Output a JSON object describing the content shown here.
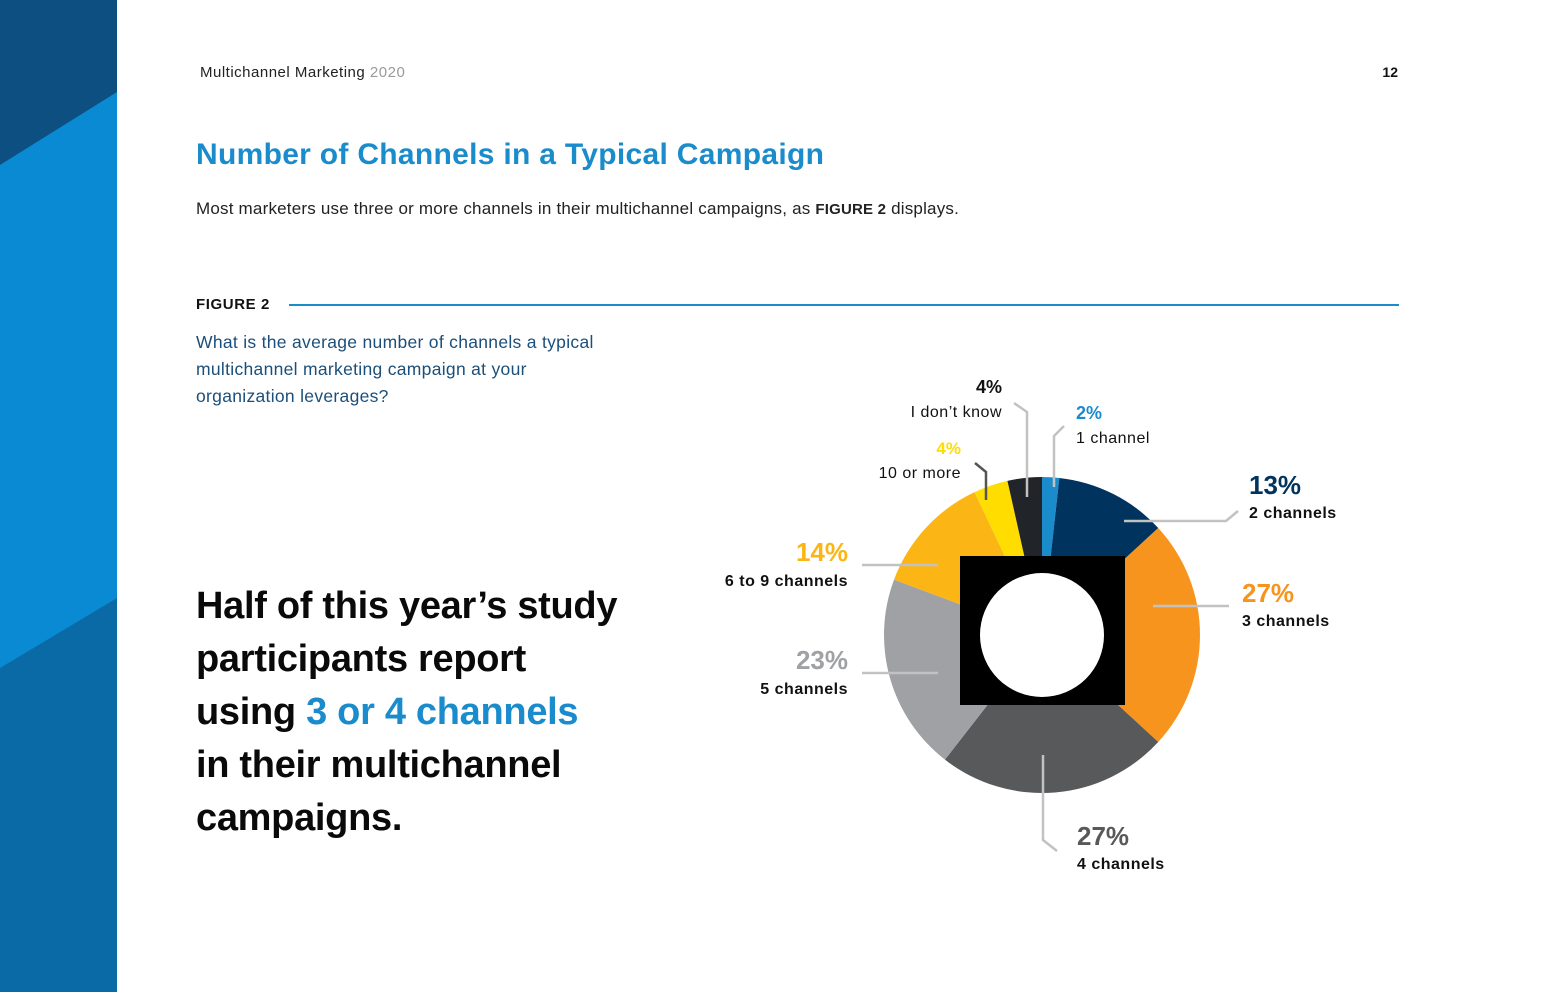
{
  "header": {
    "title": "Multichannel Marketing",
    "year": "2020",
    "page": "12"
  },
  "section_title": "Number of Channels in a Typical Campaign",
  "intro": {
    "before": "Most marketers use three or more channels in their multichannel campaigns, as ",
    "figure_ref": "FIGURE 2",
    "after": " displays."
  },
  "figure": {
    "label": "FIGURE 2",
    "question": "What is the average number of channels a typical multichannel marketing campaign at your organization leverages?"
  },
  "callout": {
    "line1": "Half of this year’s study participants report",
    "using": "using ",
    "highlight": "3 or 4 channels",
    "rest": "in their multichannel campaigns."
  },
  "colors": {
    "accent": "#1a8ccc",
    "side_dark": "#0d4f80",
    "side_mid": "#0a8ad2",
    "side_low": "#0a6aa6"
  },
  "chart_data": {
    "type": "pie",
    "style": "donut",
    "categories": [
      "1 channel",
      "2 channels",
      "3 channels",
      "4 channels",
      "5 channels",
      "6 to 9 channels",
      "10 or more",
      "I don’t know"
    ],
    "values": [
      2,
      13,
      27,
      27,
      23,
      14,
      4,
      4
    ],
    "value_labels": [
      "2%",
      "13%",
      "27%",
      "27%",
      "23%",
      "14%",
      "4%",
      "4%"
    ],
    "slice_colors": [
      "#1a8ccc",
      "#00335e",
      "#f7941d",
      "#58595b",
      "#a0a1a4",
      "#fbb515",
      "#ffdd00",
      "#212529"
    ],
    "label_colors": [
      "#1a8ccc",
      "#00335e",
      "#f7941d",
      "#58595b",
      "#a0a1a4",
      "#fbb515",
      "#ffdd00",
      "#111111"
    ],
    "unit": "%"
  }
}
